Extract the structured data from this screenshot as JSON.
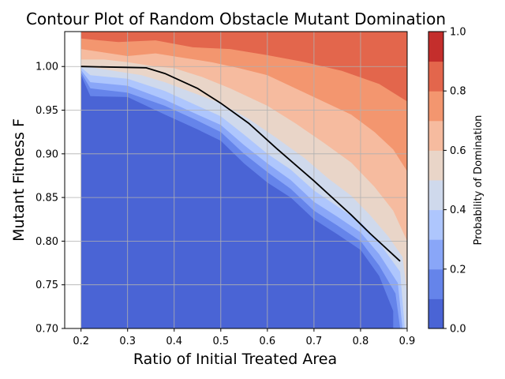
{
  "chart_data": {
    "type": "contour",
    "title": "Contour Plot of Random Obstacle Mutant Domination",
    "xlabel": "Ratio of Initial Treated Area",
    "ylabel": "Mutant Fitness F",
    "xlim": [
      0.165,
      0.9
    ],
    "ylim": [
      0.7,
      1.04
    ],
    "xticks": [
      "0.2",
      "0.3",
      "0.4",
      "0.5",
      "0.6",
      "0.7",
      "0.8",
      "0.9"
    ],
    "yticks": [
      "0.70",
      "0.75",
      "0.80",
      "0.85",
      "0.90",
      "0.95",
      "1.00"
    ],
    "grid": true,
    "colormap": "coolwarm",
    "levels": [
      0.0,
      0.1,
      0.2,
      0.3,
      0.4,
      0.5,
      0.6,
      0.7,
      0.8,
      0.9,
      1.0
    ],
    "level_colors": [
      "#4a64d5",
      "#6584ea",
      "#89a6f8",
      "#aec6fd",
      "#cfd9ec",
      "#e9d5c8",
      "#f6bb9f",
      "#f3966f",
      "#e3664c",
      "#c42e2c"
    ],
    "colorbar": {
      "label": "Probability of Domination",
      "ticks": [
        "0.0",
        "0.2",
        "0.4",
        "0.6",
        "0.8",
        "1.0"
      ]
    },
    "boundary_line": {
      "color": "#000000",
      "x": [
        0.2,
        0.34,
        0.38,
        0.45,
        0.5,
        0.56,
        0.62,
        0.7,
        0.78,
        0.82,
        0.885
      ],
      "y": [
        1.0,
        0.9985,
        0.992,
        0.975,
        0.958,
        0.935,
        0.906,
        0.869,
        0.83,
        0.809,
        0.777
      ]
    },
    "contour_regions": [
      {
        "level": 0.0,
        "boundary_x": [
          0.2,
          0.22,
          0.3,
          0.38,
          0.45,
          0.5,
          0.55,
          0.6,
          0.65,
          0.7,
          0.75,
          0.8,
          0.84,
          0.87
        ],
        "boundary_y": [
          0.99,
          0.966,
          0.965,
          0.945,
          0.928,
          0.915,
          0.889,
          0.867,
          0.85,
          0.825,
          0.808,
          0.79,
          0.76,
          0.72
        ]
      },
      {
        "level": 0.1,
        "boundary_x": [
          0.2,
          0.22,
          0.3,
          0.38,
          0.45,
          0.5,
          0.55,
          0.6,
          0.65,
          0.7,
          0.75,
          0.8,
          0.84,
          0.875,
          0.885
        ],
        "boundary_y": [
          0.993,
          0.975,
          0.97,
          0.955,
          0.938,
          0.925,
          0.9,
          0.879,
          0.86,
          0.835,
          0.818,
          0.8,
          0.772,
          0.74,
          0.7
        ]
      },
      {
        "level": 0.2,
        "boundary_x": [
          0.2,
          0.22,
          0.3,
          0.38,
          0.45,
          0.5,
          0.55,
          0.6,
          0.65,
          0.7,
          0.75,
          0.8,
          0.84,
          0.88,
          0.89
        ],
        "boundary_y": [
          0.996,
          0.982,
          0.978,
          0.962,
          0.945,
          0.933,
          0.91,
          0.889,
          0.87,
          0.845,
          0.828,
          0.81,
          0.785,
          0.752,
          0.7
        ]
      },
      {
        "level": 0.3,
        "boundary_x": [
          0.2,
          0.22,
          0.3,
          0.38,
          0.45,
          0.5,
          0.55,
          0.6,
          0.65,
          0.7,
          0.75,
          0.8,
          0.84,
          0.885,
          0.895
        ],
        "boundary_y": [
          0.999,
          0.99,
          0.986,
          0.972,
          0.955,
          0.943,
          0.922,
          0.9,
          0.882,
          0.858,
          0.84,
          0.822,
          0.798,
          0.765,
          0.7
        ]
      },
      {
        "level": 0.4,
        "boundary_x": [
          0.21,
          0.26,
          0.33,
          0.38,
          0.45,
          0.5,
          0.56,
          0.62,
          0.68,
          0.73,
          0.78,
          0.82,
          0.86,
          0.89,
          0.9
        ],
        "boundary_y": [
          1.0,
          0.996,
          0.99,
          0.982,
          0.968,
          0.958,
          0.94,
          0.918,
          0.895,
          0.872,
          0.852,
          0.83,
          0.805,
          0.782,
          0.74
        ]
      },
      {
        "level": 0.5,
        "boundary_x": [
          0.25,
          0.3,
          0.36,
          0.4,
          0.46,
          0.52,
          0.6,
          0.66,
          0.72,
          0.78,
          0.83,
          0.87,
          0.9
        ],
        "boundary_y": [
          1.008,
          1.005,
          1.0,
          0.998,
          0.988,
          0.975,
          0.955,
          0.935,
          0.913,
          0.89,
          0.862,
          0.835,
          0.8
        ]
      },
      {
        "level": 0.6,
        "boundary_x": [
          0.2,
          0.3,
          0.36,
          0.42,
          0.48,
          0.54,
          0.6,
          0.66,
          0.72,
          0.78,
          0.83,
          0.87,
          0.9
        ],
        "boundary_y": [
          1.02,
          1.012,
          1.015,
          1.01,
          1.005,
          0.998,
          0.99,
          0.975,
          0.96,
          0.945,
          0.925,
          0.905,
          0.88
        ]
      },
      {
        "level": 0.7,
        "boundary_x": [
          0.2,
          0.28,
          0.36,
          0.44,
          0.52,
          0.6,
          0.68,
          0.76,
          0.84,
          0.9
        ],
        "boundary_y": [
          1.032,
          1.028,
          1.03,
          1.022,
          1.02,
          1.013,
          1.005,
          0.995,
          0.98,
          0.96
        ]
      },
      {
        "level": 0.8,
        "boundary_x": [
          0.2,
          0.24,
          0.28,
          0.34,
          0.4,
          0.44,
          0.5,
          0.56,
          0.62,
          0.68,
          0.72,
          0.78,
          0.84,
          0.9
        ],
        "boundary_y": [
          1.038,
          1.034,
          1.038,
          1.036,
          1.033,
          1.035,
          1.038,
          1.036,
          1.031,
          1.038,
          1.034,
          1.033,
          1.028,
          1.025
        ]
      }
    ]
  }
}
